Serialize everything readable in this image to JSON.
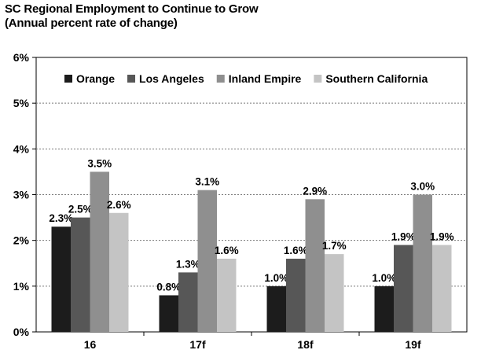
{
  "chart_data": {
    "type": "bar",
    "title": "SC Regional Employment to Continue to Grow",
    "subtitle": "(Annual percent rate of change)",
    "categories": [
      "16",
      "17f",
      "18f",
      "19f"
    ],
    "series": [
      {
        "name": "Orange",
        "color": "#1c1c1c",
        "values": [
          2.3,
          0.8,
          1.0,
          1.0
        ],
        "labels": [
          "2.3%",
          "0.8%",
          "1.0%",
          "1.0%"
        ]
      },
      {
        "name": "Los Angeles",
        "color": "#575757",
        "values": [
          2.5,
          1.3,
          1.6,
          1.9
        ],
        "labels": [
          "2.5%",
          "1.3%",
          "1.6%",
          "1.9%"
        ]
      },
      {
        "name": "Inland Empire",
        "color": "#8f8f8f",
        "values": [
          3.5,
          3.1,
          2.9,
          3.0
        ],
        "labels": [
          "3.5%",
          "3.1%",
          "2.9%",
          "3.0%"
        ]
      },
      {
        "name": "Southern California",
        "color": "#c4c4c4",
        "values": [
          2.6,
          1.6,
          1.7,
          1.9
        ],
        "labels": [
          "2.6%",
          "1.6%",
          "1.7%",
          "1.9%"
        ]
      }
    ],
    "ylim": [
      0,
      6
    ],
    "yticks": [
      "0%",
      "1%",
      "2%",
      "3%",
      "4%",
      "5%",
      "6%"
    ],
    "grid": true,
    "legend_position": "top"
  }
}
